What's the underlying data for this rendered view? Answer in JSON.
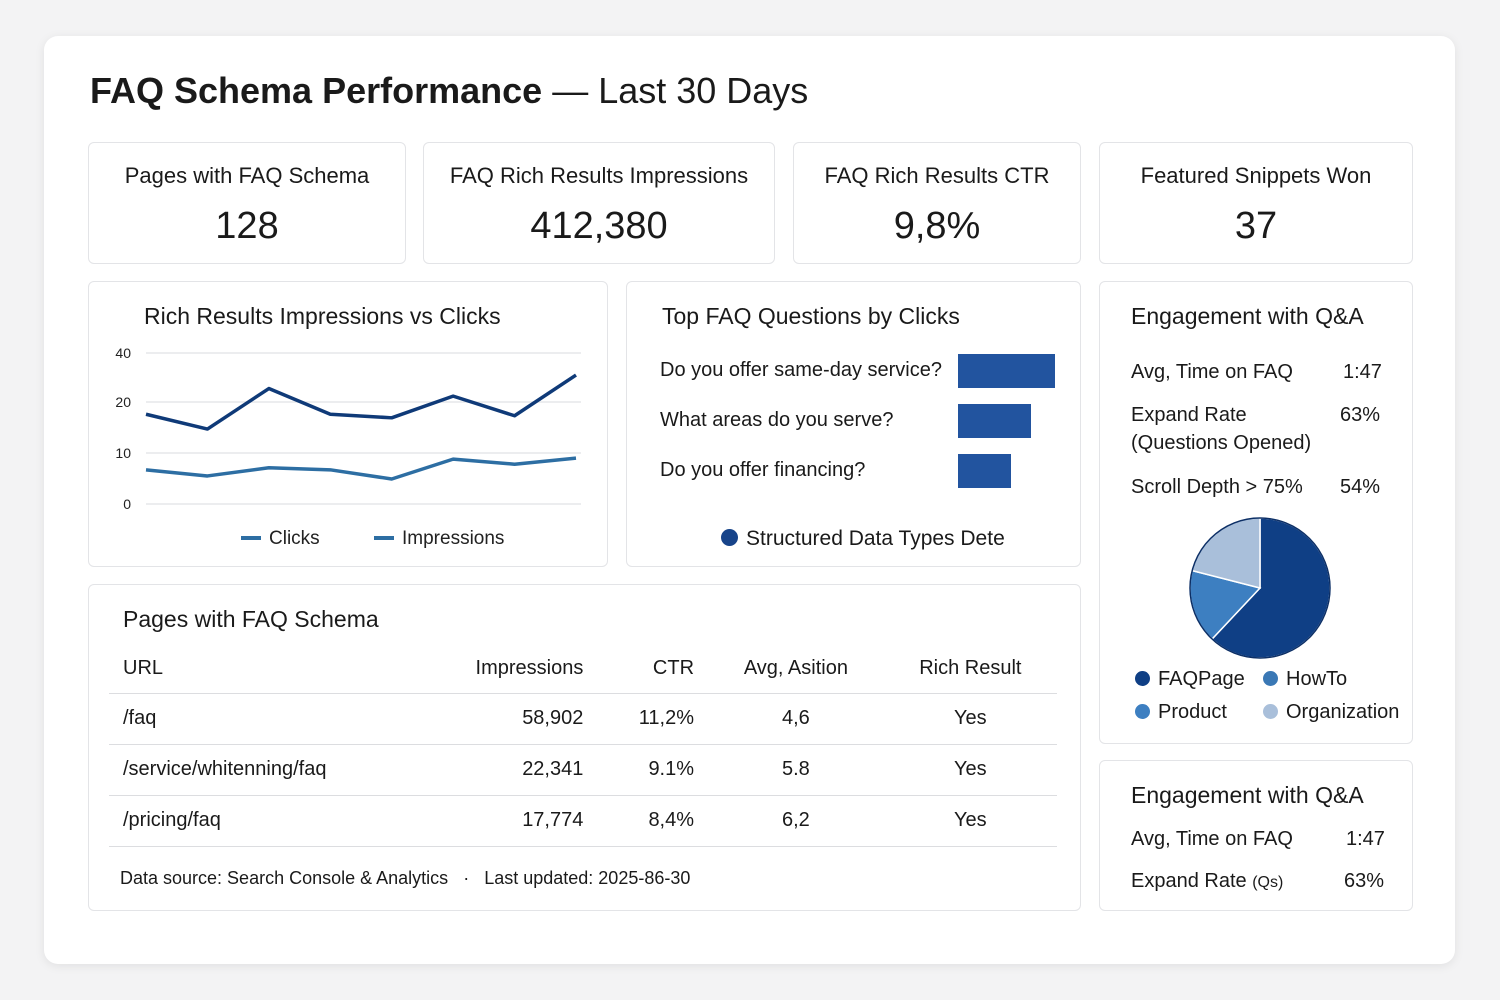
{
  "header": {
    "title_bold": "FAQ Schema Performance",
    "title_rest": " — Last 30 Days"
  },
  "kpis": [
    {
      "label": "Pages with FAQ Schema",
      "value": "128"
    },
    {
      "label": "FAQ Rich Results Impressions",
      "value": "412,380"
    },
    {
      "label": "FAQ Rich Results CTR",
      "value": "9,8%"
    },
    {
      "label": "Featured Snippets Won",
      "value": "37"
    }
  ],
  "line_chart": {
    "title": "Rich Results Impressions vs Clicks"
  },
  "chart_data": [
    {
      "type": "line",
      "title": "Rich Results Impressions vs Clicks",
      "yticks": [
        "0",
        "10",
        "20",
        "40"
      ],
      "ytick_values": [
        0,
        10,
        20,
        40
      ],
      "ylim": [
        0,
        40
      ],
      "grid": true,
      "legend": "bottom",
      "series": [
        {
          "name": "Clicks",
          "color": "#2d6ea3",
          "values": [
            6.7,
            5.5,
            7.1,
            6.7,
            4.9,
            8.8,
            7.8,
            9.0
          ]
        },
        {
          "name": "Impressions",
          "color": "#0f3a78",
          "values": [
            17.6,
            14.7,
            25.5,
            17.6,
            16.9,
            22.4,
            17.3,
            31
          ]
        }
      ]
    },
    {
      "type": "bar",
      "title": "Top FAQ Questions by Clicks",
      "categories": [
        "Do you offer same-day service?",
        "What areas do you serve?",
        "Do you offer financing?"
      ],
      "values": [
        100,
        75,
        55
      ]
    },
    {
      "type": "pie",
      "title": "Structured Data Types Dete",
      "categories": [
        "FAQPage",
        "Product",
        "Organization",
        "HowTo"
      ],
      "values": [
        62,
        17,
        21,
        0
      ],
      "colors": [
        "#0f3f85",
        "#3d7fc1",
        "#a9bfda",
        "#3a78b5"
      ]
    }
  ],
  "top_questions": {
    "title": "Top FAQ Questions by Clicks",
    "legend": "Structured Data Types Dete"
  },
  "engagement": {
    "title": "Engagement with Q&A",
    "rows": [
      {
        "label": "Avg, Time on FAQ",
        "value": "1:47"
      },
      {
        "label": "Expand Rate",
        "label2": "(Questions Opened)",
        "value": "63%"
      },
      {
        "label": "Scroll Depth > 75%",
        "value": "54%"
      }
    ],
    "legend": [
      {
        "name": "FAQPage",
        "color": "#0f3f85"
      },
      {
        "name": "HowTo",
        "color": "#3a78b5"
      },
      {
        "name": "Product",
        "color": "#3d7fc1"
      },
      {
        "name": "Organization",
        "color": "#a9bfda"
      }
    ]
  },
  "engagement2": {
    "title": "Engagement with Q&A",
    "rows": [
      {
        "label": "Avg, Time on FAQ",
        "value": "1:47"
      },
      {
        "label": "Expand Rate",
        "suffix": "(Qs)",
        "value": "63%"
      }
    ]
  },
  "table": {
    "title": "Pages with FAQ Schema",
    "headers": [
      "URL",
      "Impressions",
      "CTR",
      "Avg, Asition",
      "Rich Result"
    ],
    "rows": [
      [
        "/faq",
        "58,902",
        "11,2%",
        "4,6",
        "Yes"
      ],
      [
        "/service/whitenning/faq",
        "22,341",
        "9.1%",
        "5.8",
        "Yes"
      ],
      [
        "/pricing/faq",
        "17,774",
        "8,4%",
        "6,2",
        "Yes"
      ]
    ],
    "footer_source": "Data source: Search Console & Analytics",
    "footer_sep": "·",
    "footer_updated": "Last updated: 2025-86-30"
  }
}
